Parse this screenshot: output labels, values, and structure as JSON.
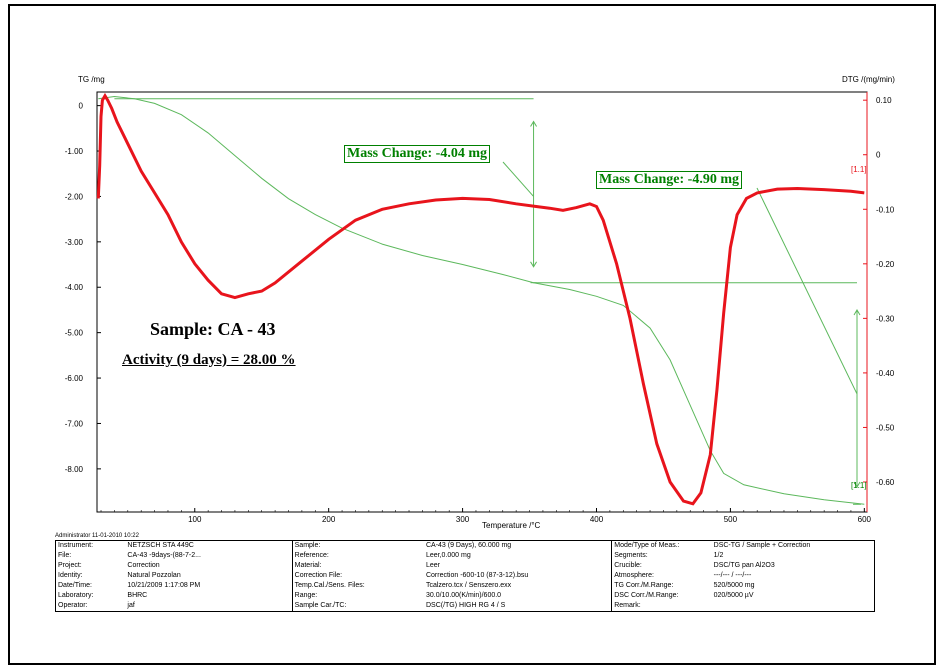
{
  "chart_data": {
    "type": "line",
    "xlabel": "Temperature /°C",
    "ylabel_left": "TG /mg",
    "ylabel_right": "DTG /(mg/min)",
    "xlim": [
      27,
      602
    ],
    "ylim_left": [
      -8.95,
      0.3
    ],
    "ylim_right": [
      -0.655,
      0.115
    ],
    "x_ticks": [
      100,
      200,
      300,
      400,
      500,
      600
    ],
    "y_left_ticks": [
      "0",
      "-1.00",
      "-2.00",
      "-3.00",
      "-4.00",
      "-5.00",
      "-6.00",
      "-7.00",
      "-8.00"
    ],
    "y_right_ticks": [
      "0.10",
      "0",
      "-0.10",
      "-0.20",
      "-0.30",
      "-0.40",
      "-0.50",
      "-0.60"
    ],
    "series": [
      {
        "name": "TG",
        "axis": "left",
        "color": "#5cb85c",
        "points": [
          [
            28,
            0.15
          ],
          [
            40,
            0.2
          ],
          [
            55,
            0.15
          ],
          [
            70,
            0.05
          ],
          [
            90,
            -0.2
          ],
          [
            110,
            -0.6
          ],
          [
            130,
            -1.1
          ],
          [
            150,
            -1.6
          ],
          [
            170,
            -2.05
          ],
          [
            190,
            -2.4
          ],
          [
            210,
            -2.7
          ],
          [
            240,
            -3.05
          ],
          [
            270,
            -3.3
          ],
          [
            300,
            -3.5
          ],
          [
            330,
            -3.72
          ],
          [
            353,
            -3.9
          ],
          [
            380,
            -4.05
          ],
          [
            400,
            -4.2
          ],
          [
            420,
            -4.4
          ],
          [
            440,
            -4.9
          ],
          [
            455,
            -5.6
          ],
          [
            470,
            -6.6
          ],
          [
            485,
            -7.6
          ],
          [
            495,
            -8.1
          ],
          [
            510,
            -8.35
          ],
          [
            540,
            -8.55
          ],
          [
            570,
            -8.68
          ],
          [
            600,
            -8.78
          ]
        ]
      },
      {
        "name": "DTG",
        "axis": "right",
        "color": "#e8141c",
        "points": [
          [
            28,
            -0.08
          ],
          [
            29,
            -0.02
          ],
          [
            30,
            0.07
          ],
          [
            31,
            0.1
          ],
          [
            33,
            0.108
          ],
          [
            35,
            0.1
          ],
          [
            38,
            0.085
          ],
          [
            42,
            0.06
          ],
          [
            50,
            0.02
          ],
          [
            60,
            -0.03
          ],
          [
            70,
            -0.07
          ],
          [
            80,
            -0.11
          ],
          [
            90,
            -0.16
          ],
          [
            100,
            -0.2
          ],
          [
            110,
            -0.23
          ],
          [
            120,
            -0.255
          ],
          [
            130,
            -0.262
          ],
          [
            140,
            -0.255
          ],
          [
            150,
            -0.25
          ],
          [
            160,
            -0.235
          ],
          [
            180,
            -0.195
          ],
          [
            200,
            -0.155
          ],
          [
            220,
            -0.12
          ],
          [
            240,
            -0.1
          ],
          [
            260,
            -0.09
          ],
          [
            280,
            -0.083
          ],
          [
            300,
            -0.08
          ],
          [
            320,
            -0.082
          ],
          [
            340,
            -0.09
          ],
          [
            355,
            -0.095
          ],
          [
            365,
            -0.098
          ],
          [
            375,
            -0.102
          ],
          [
            385,
            -0.097
          ],
          [
            395,
            -0.09
          ],
          [
            400,
            -0.095
          ],
          [
            405,
            -0.12
          ],
          [
            415,
            -0.2
          ],
          [
            425,
            -0.3
          ],
          [
            435,
            -0.42
          ],
          [
            445,
            -0.53
          ],
          [
            455,
            -0.6
          ],
          [
            465,
            -0.635
          ],
          [
            472,
            -0.64
          ],
          [
            478,
            -0.62
          ],
          [
            485,
            -0.55
          ],
          [
            490,
            -0.43
          ],
          [
            495,
            -0.29
          ],
          [
            500,
            -0.17
          ],
          [
            505,
            -0.11
          ],
          [
            512,
            -0.08
          ],
          [
            520,
            -0.07
          ],
          [
            535,
            -0.063
          ],
          [
            550,
            -0.062
          ],
          [
            570,
            -0.064
          ],
          [
            590,
            -0.067
          ],
          [
            600,
            -0.07
          ]
        ]
      }
    ],
    "annotations": [
      {
        "text": "Mass Change: -4.04 mg",
        "color": "#008000"
      },
      {
        "text": "Mass Change: -4.90 mg",
        "color": "#008000"
      },
      {
        "text": "[1.1]",
        "color": "#e8141c"
      },
      {
        "text": "[1.1]",
        "color": "#008000"
      }
    ],
    "grid": false
  },
  "sample_title": "Sample: CA - 43",
  "activity_text": "Activity (9 days) = 28.00 %",
  "admin_line": "Administrator   11-01-2010 10:22",
  "info_table": [
    [
      "Instrument:",
      "NETZSCH STA 449C",
      "Sample:",
      "CA-43  (9 Days), 60.000 mg",
      "Mode/Type of Meas.:",
      "DSC-TG / Sample + Correction"
    ],
    [
      "File:",
      "CA-43 -9days-(88-7-2...",
      "Reference:",
      "Leer,0.000 mg",
      "Segments:",
      "1/2"
    ],
    [
      "Project:",
      "Correction",
      "Material:",
      "Leer",
      "Crucible:",
      "DSC/TG pan Al2O3"
    ],
    [
      "Identity:",
      "Natural Pozzolan",
      "Correction File:",
      "Correction -600-10 (87-3-12).bsu",
      "Atmosphere:",
      "---/--- / ---/---"
    ],
    [
      "Date/Time:",
      "10/21/2009 1:17:08 PM",
      "Temp.Cal./Sens. Files:",
      "Tcalzero.tcx / Senszero.exx",
      "TG Corr./M.Range:",
      "520/5000 mg"
    ],
    [
      "Laboratory:",
      "BHRC",
      "Range:",
      "30.0/10.00(K/min)/600.0",
      "DSC Corr./M.Range:",
      "020/5000 µV"
    ],
    [
      "Operator:",
      "jaf",
      "Sample Car./TC:",
      "DSC(/TG) HIGH RG 4 / S",
      "Remark:",
      ""
    ]
  ]
}
